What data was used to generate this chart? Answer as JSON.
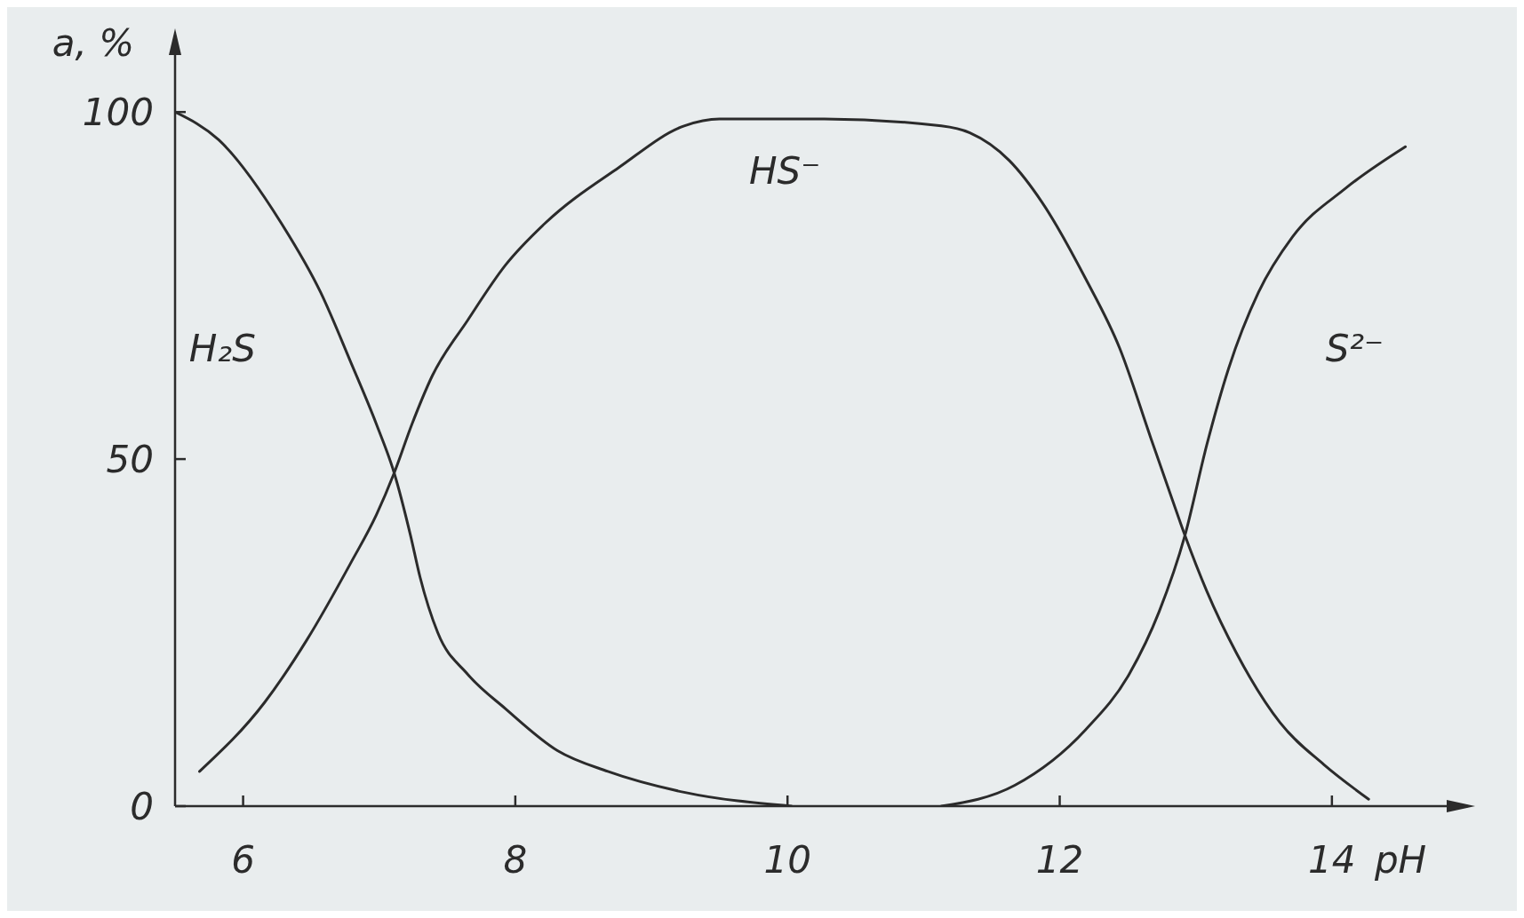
{
  "chart_data": {
    "type": "line",
    "xlabel": "pH",
    "ylabel": "a, %",
    "xlim": [
      5.5,
      15
    ],
    "ylim": [
      0,
      110
    ],
    "xticks": [
      6,
      8,
      10,
      12,
      14
    ],
    "yticks": [
      0,
      50,
      100
    ],
    "series": [
      {
        "name": "H₂S",
        "color": "#2b2b2b",
        "x": [
          5.5,
          5.82,
          6.28,
          6.57,
          6.79,
          6.98,
          7.11,
          7.23,
          7.3,
          7.43,
          7.65,
          7.93,
          8.31,
          8.68,
          9.24,
          10.03
        ],
        "values": [
          100,
          96,
          84,
          74,
          64,
          55,
          48,
          39,
          33,
          25,
          19,
          14,
          8,
          5,
          2,
          0
        ]
      },
      {
        "name": "HS⁻",
        "color": "#2b2b2b",
        "x": [
          5.68,
          6.16,
          6.47,
          6.79,
          6.98,
          7.11,
          7.24,
          7.39,
          7.65,
          7.93,
          8.22,
          8.76,
          9.24,
          9.5,
          9.73,
          10.27,
          11.13,
          11.34,
          11.63,
          11.87,
          12.19,
          12.44,
          12.67,
          12.83,
          12.92,
          13.08,
          13.3,
          13.62,
          13.94,
          14.27
        ],
        "values": [
          5,
          15,
          24,
          35,
          42,
          48,
          55,
          62,
          70,
          78,
          84,
          92,
          98,
          99,
          99,
          99,
          98,
          97,
          93,
          87,
          76,
          66,
          53,
          44,
          39,
          31,
          22,
          12,
          6,
          1
        ]
      },
      {
        "name": "S²⁻",
        "color": "#2b2b2b",
        "x": [
          11.13,
          11.67,
          12.19,
          12.51,
          12.73,
          12.92,
          13.08,
          13.24,
          13.46,
          13.71,
          14.1,
          14.54
        ],
        "values": [
          0,
          3,
          11,
          19,
          28,
          39,
          52,
          63,
          74,
          82,
          89,
          95
        ]
      }
    ]
  }
}
